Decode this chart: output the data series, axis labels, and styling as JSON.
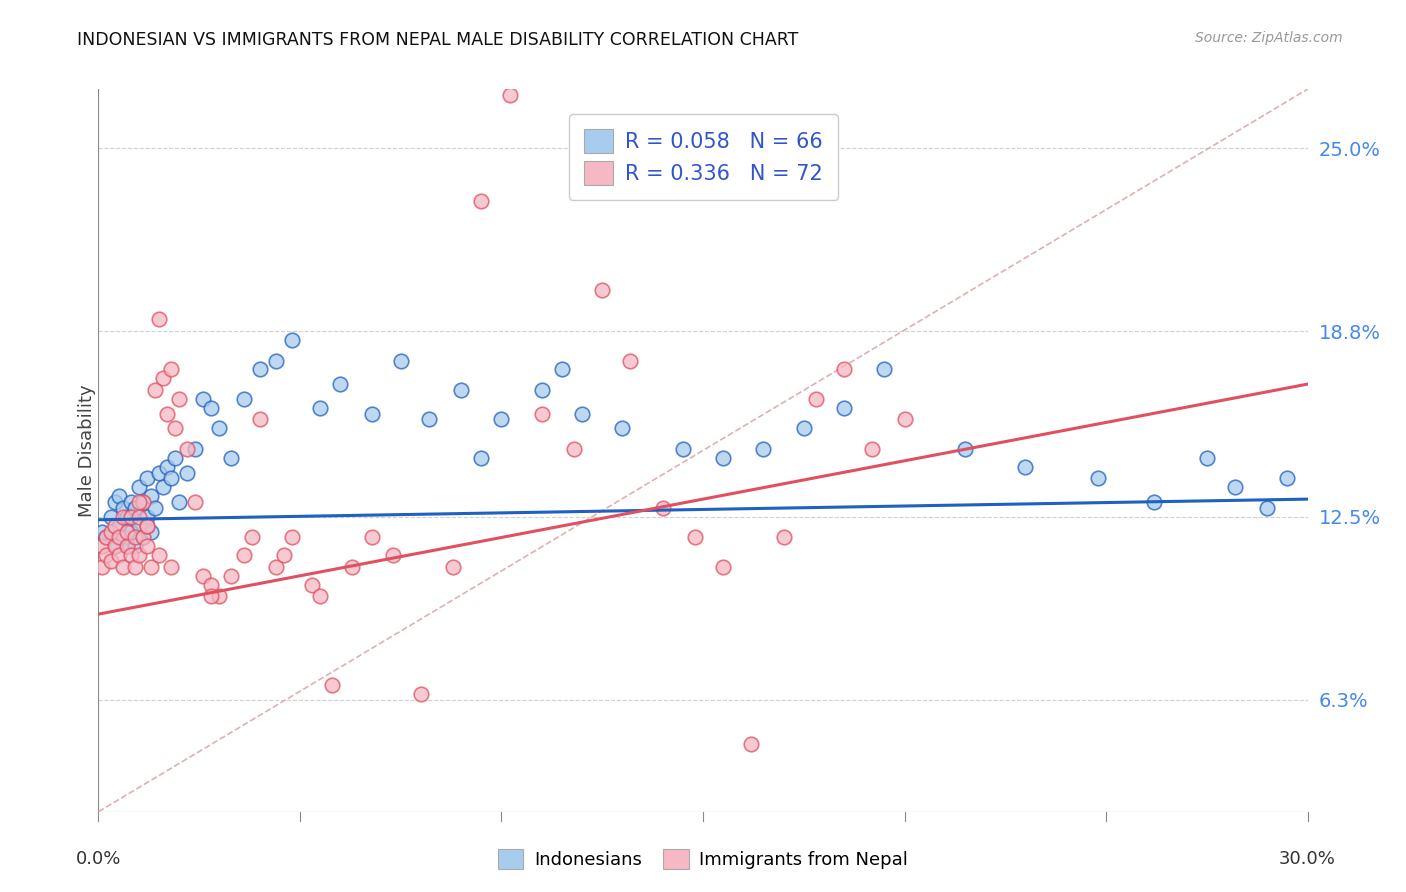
{
  "title": "INDONESIAN VS IMMIGRANTS FROM NEPAL MALE DISABILITY CORRELATION CHART",
  "source": "Source: ZipAtlas.com",
  "ylabel": "Male Disability",
  "ytick_labels": [
    "6.3%",
    "12.5%",
    "18.8%",
    "25.0%"
  ],
  "ytick_values": [
    0.063,
    0.125,
    0.188,
    0.25
  ],
  "xlim": [
    0.0,
    0.3
  ],
  "ylim": [
    0.025,
    0.27
  ],
  "legend_r1": "R = 0.058",
  "legend_n1": "N = 66",
  "legend_r2": "R = 0.336",
  "legend_n2": "N = 72",
  "color_blue": "#a8ccee",
  "color_pink": "#f5b8c4",
  "color_blue_line": "#2060c0",
  "color_pink_line": "#e05060",
  "color_diag_line": "#e0b0b0",
  "scatter_blue": {
    "x": [
      0.001,
      0.002,
      0.003,
      0.004,
      0.004,
      0.005,
      0.005,
      0.006,
      0.006,
      0.007,
      0.007,
      0.008,
      0.008,
      0.009,
      0.009,
      0.01,
      0.01,
      0.011,
      0.011,
      0.012,
      0.012,
      0.013,
      0.013,
      0.014,
      0.015,
      0.016,
      0.017,
      0.018,
      0.019,
      0.02,
      0.022,
      0.024,
      0.026,
      0.028,
      0.03,
      0.033,
      0.036,
      0.04,
      0.044,
      0.048,
      0.055,
      0.06,
      0.068,
      0.075,
      0.082,
      0.09,
      0.095,
      0.1,
      0.11,
      0.115,
      0.12,
      0.13,
      0.145,
      0.155,
      0.165,
      0.175,
      0.185,
      0.195,
      0.215,
      0.23,
      0.248,
      0.262,
      0.275,
      0.282,
      0.29,
      0.295
    ],
    "y": [
      0.12,
      0.118,
      0.125,
      0.13,
      0.115,
      0.122,
      0.132,
      0.118,
      0.128,
      0.115,
      0.125,
      0.12,
      0.13,
      0.115,
      0.128,
      0.122,
      0.135,
      0.118,
      0.13,
      0.125,
      0.138,
      0.12,
      0.132,
      0.128,
      0.14,
      0.135,
      0.142,
      0.138,
      0.145,
      0.13,
      0.14,
      0.148,
      0.165,
      0.162,
      0.155,
      0.145,
      0.165,
      0.175,
      0.178,
      0.185,
      0.162,
      0.17,
      0.16,
      0.178,
      0.158,
      0.168,
      0.145,
      0.158,
      0.168,
      0.175,
      0.16,
      0.155,
      0.148,
      0.145,
      0.148,
      0.155,
      0.162,
      0.175,
      0.148,
      0.142,
      0.138,
      0.13,
      0.145,
      0.135,
      0.128,
      0.138
    ]
  },
  "scatter_pink": {
    "x": [
      0.001,
      0.001,
      0.002,
      0.002,
      0.003,
      0.003,
      0.004,
      0.004,
      0.005,
      0.005,
      0.006,
      0.006,
      0.007,
      0.007,
      0.008,
      0.008,
      0.009,
      0.009,
      0.01,
      0.01,
      0.011,
      0.011,
      0.012,
      0.012,
      0.013,
      0.014,
      0.015,
      0.016,
      0.017,
      0.018,
      0.019,
      0.02,
      0.022,
      0.024,
      0.026,
      0.028,
      0.03,
      0.033,
      0.036,
      0.04,
      0.044,
      0.048,
      0.053,
      0.058,
      0.063,
      0.068,
      0.073,
      0.08,
      0.088,
      0.095,
      0.102,
      0.11,
      0.118,
      0.125,
      0.132,
      0.14,
      0.148,
      0.155,
      0.162,
      0.17,
      0.178,
      0.185,
      0.192,
      0.2,
      0.055,
      0.046,
      0.038,
      0.028,
      0.018,
      0.015,
      0.012,
      0.01
    ],
    "y": [
      0.115,
      0.108,
      0.112,
      0.118,
      0.11,
      0.12,
      0.115,
      0.122,
      0.112,
      0.118,
      0.108,
      0.125,
      0.115,
      0.12,
      0.112,
      0.125,
      0.108,
      0.118,
      0.112,
      0.125,
      0.118,
      0.13,
      0.115,
      0.122,
      0.108,
      0.168,
      0.192,
      0.172,
      0.16,
      0.175,
      0.155,
      0.165,
      0.148,
      0.13,
      0.105,
      0.102,
      0.098,
      0.105,
      0.112,
      0.158,
      0.108,
      0.118,
      0.102,
      0.068,
      0.108,
      0.118,
      0.112,
      0.065,
      0.108,
      0.232,
      0.268,
      0.16,
      0.148,
      0.202,
      0.178,
      0.128,
      0.118,
      0.108,
      0.048,
      0.118,
      0.165,
      0.175,
      0.148,
      0.158,
      0.098,
      0.112,
      0.118,
      0.098,
      0.108,
      0.112,
      0.122,
      0.13
    ]
  }
}
